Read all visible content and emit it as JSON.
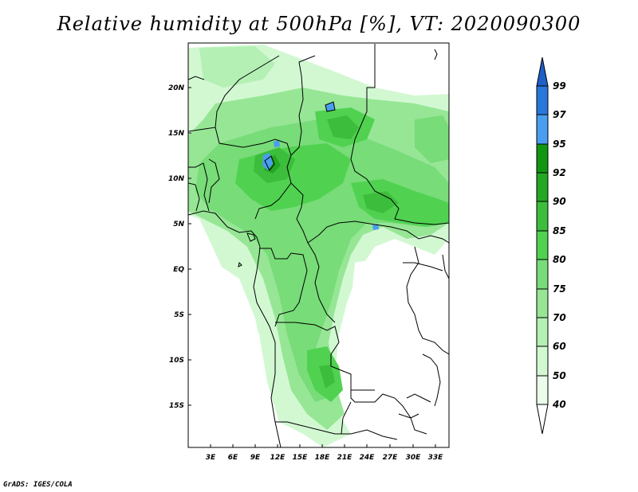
{
  "title": "Relative humidity at 500hPa [%], VT: 2020090300",
  "credit": "GrADS: IGES/COLA",
  "map": {
    "lat_labels": [
      "20N",
      "15N",
      "10N",
      "5N",
      "EQ",
      "5S",
      "10S",
      "15S"
    ],
    "lon_labels": [
      "3E",
      "6E",
      "9E",
      "12E",
      "15E",
      "18E",
      "21E",
      "24E",
      "27E",
      "30E",
      "33E"
    ]
  },
  "colorbar": {
    "levels": [
      "99",
      "97",
      "95",
      "92",
      "90",
      "85",
      "80",
      "75",
      "70",
      "60",
      "50",
      "40"
    ],
    "colors": {
      "above_99": "#1e5fc8",
      "97_99": "#2878dc",
      "95_97": "#4a9ef0",
      "92_95": "#119611",
      "90_92": "#23a823",
      "85_90": "#3cbe3c",
      "80_85": "#50d250",
      "75_80": "#78dc78",
      "70_75": "#96e696",
      "60_70": "#b4f0b4",
      "50_60": "#d2f8d2",
      "40_50": "#eafcea",
      "below_40": "#ffffff"
    }
  }
}
